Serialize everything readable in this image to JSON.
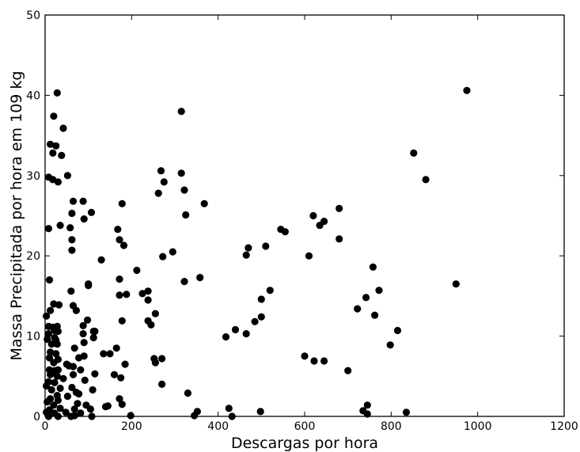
{
  "chart_data": {
    "type": "scatter",
    "title": "",
    "xlabel": "Descargas por hora",
    "ylabel": "Massa Precipitada por hora em 109 kg",
    "xlim": [
      0,
      1200
    ],
    "ylim": [
      0,
      50
    ],
    "x_ticks": [
      0,
      200,
      400,
      600,
      800,
      1000,
      1200
    ],
    "y_ticks": [
      0,
      10,
      20,
      30,
      40,
      50
    ],
    "grid": false,
    "marker_color": "#000000",
    "points": [
      [
        28,
        40.3
      ],
      [
        20,
        37.4
      ],
      [
        42,
        35.9
      ],
      [
        12,
        33.9
      ],
      [
        25,
        33.7
      ],
      [
        18,
        32.8
      ],
      [
        38,
        32.5
      ],
      [
        8,
        29.8
      ],
      [
        18,
        29.5
      ],
      [
        30,
        29.2
      ],
      [
        52,
        30.0
      ],
      [
        65,
        26.8
      ],
      [
        88,
        26.8
      ],
      [
        62,
        25.3
      ],
      [
        107,
        25.4
      ],
      [
        90,
        24.6
      ],
      [
        35,
        23.8
      ],
      [
        8,
        23.4
      ],
      [
        58,
        23.5
      ],
      [
        62,
        22.0
      ],
      [
        62,
        20.7
      ],
      [
        10,
        17.0
      ],
      [
        100,
        16.5
      ],
      [
        100,
        16.3
      ],
      [
        60,
        15.6
      ],
      [
        20,
        14.0
      ],
      [
        32,
        13.9
      ],
      [
        65,
        13.8
      ],
      [
        72,
        13.2
      ],
      [
        12,
        13.2
      ],
      [
        3,
        12.5
      ],
      [
        98,
        12.0
      ],
      [
        88,
        11.3
      ],
      [
        8,
        11.2
      ],
      [
        18,
        11.1
      ],
      [
        28,
        11.2
      ],
      [
        22,
        10.7
      ],
      [
        30,
        10.6
      ],
      [
        112,
        10.6
      ],
      [
        8,
        10.3
      ],
      [
        88,
        10.3
      ],
      [
        22,
        9.8
      ],
      [
        112,
        9.8
      ],
      [
        5,
        9.6
      ],
      [
        25,
        9.5
      ],
      [
        15,
        9.0
      ],
      [
        28,
        9.0
      ],
      [
        68,
        8.5
      ],
      [
        90,
        9.2
      ],
      [
        12,
        8.0
      ],
      [
        25,
        7.8
      ],
      [
        10,
        7.3
      ],
      [
        30,
        7.1
      ],
      [
        78,
        7.3
      ],
      [
        90,
        7.5
      ],
      [
        20,
        6.7
      ],
      [
        50,
        6.5
      ],
      [
        55,
        6.3
      ],
      [
        65,
        6.2
      ],
      [
        30,
        5.8
      ],
      [
        10,
        5.8
      ],
      [
        22,
        5.7
      ],
      [
        82,
        5.8
      ],
      [
        12,
        5.2
      ],
      [
        28,
        5.0
      ],
      [
        65,
        5.2
      ],
      [
        115,
        5.3
      ],
      [
        42,
        4.7
      ],
      [
        8,
        4.3
      ],
      [
        22,
        4.2
      ],
      [
        92,
        4.5
      ],
      [
        3,
        3.8
      ],
      [
        15,
        3.3
      ],
      [
        35,
        3.5
      ],
      [
        62,
        3.6
      ],
      [
        110,
        3.3
      ],
      [
        72,
        3.0
      ],
      [
        78,
        2.8
      ],
      [
        28,
        2.6
      ],
      [
        52,
        2.5
      ],
      [
        12,
        2.2
      ],
      [
        30,
        2.0
      ],
      [
        5,
        1.8
      ],
      [
        20,
        1.4
      ],
      [
        75,
        1.6
      ],
      [
        95,
        1.4
      ],
      [
        35,
        1.0
      ],
      [
        10,
        0.8
      ],
      [
        68,
        0.9
      ],
      [
        105,
        0.9
      ],
      [
        3,
        0.5
      ],
      [
        22,
        0.4
      ],
      [
        48,
        0.5
      ],
      [
        82,
        0.4
      ],
      [
        8,
        0.0
      ],
      [
        30,
        0.0
      ],
      [
        60,
        0.0
      ],
      [
        68,
        0.1
      ],
      [
        108,
        0.0
      ],
      [
        178,
        26.5
      ],
      [
        168,
        23.3
      ],
      [
        172,
        22.0
      ],
      [
        182,
        21.3
      ],
      [
        130,
        19.5
      ],
      [
        212,
        18.2
      ],
      [
        172,
        17.1
      ],
      [
        188,
        15.2
      ],
      [
        172,
        15.1
      ],
      [
        238,
        15.6
      ],
      [
        225,
        15.3
      ],
      [
        238,
        14.5
      ],
      [
        255,
        12.8
      ],
      [
        178,
        11.9
      ],
      [
        238,
        11.9
      ],
      [
        245,
        11.4
      ],
      [
        115,
        10.6
      ],
      [
        165,
        8.5
      ],
      [
        135,
        7.8
      ],
      [
        150,
        7.8
      ],
      [
        252,
        7.2
      ],
      [
        255,
        6.7
      ],
      [
        270,
        7.2
      ],
      [
        185,
        6.5
      ],
      [
        160,
        5.2
      ],
      [
        175,
        4.8
      ],
      [
        270,
        4.0
      ],
      [
        172,
        2.2
      ],
      [
        178,
        1.5
      ],
      [
        145,
        1.3
      ],
      [
        140,
        1.2
      ],
      [
        198,
        0.1
      ],
      [
        268,
        30.6
      ],
      [
        275,
        29.2
      ],
      [
        262,
        27.8
      ],
      [
        315,
        38.0
      ],
      [
        315,
        30.3
      ],
      [
        322,
        28.2
      ],
      [
        368,
        26.5
      ],
      [
        325,
        25.1
      ],
      [
        295,
        20.5
      ],
      [
        272,
        19.9
      ],
      [
        358,
        17.3
      ],
      [
        322,
        16.8
      ],
      [
        330,
        2.9
      ],
      [
        352,
        0.6
      ],
      [
        345,
        0.1
      ],
      [
        470,
        21.0
      ],
      [
        465,
        20.1
      ],
      [
        510,
        21.2
      ],
      [
        545,
        23.3
      ],
      [
        555,
        23.0
      ],
      [
        520,
        15.7
      ],
      [
        500,
        14.6
      ],
      [
        500,
        12.4
      ],
      [
        485,
        11.8
      ],
      [
        440,
        10.8
      ],
      [
        465,
        10.3
      ],
      [
        418,
        9.9
      ],
      [
        425,
        1.0
      ],
      [
        432,
        0.0
      ],
      [
        498,
        0.6
      ],
      [
        620,
        25.0
      ],
      [
        635,
        23.8
      ],
      [
        645,
        24.3
      ],
      [
        680,
        25.9
      ],
      [
        680,
        22.1
      ],
      [
        610,
        20.0
      ],
      [
        758,
        18.6
      ],
      [
        772,
        15.7
      ],
      [
        742,
        14.8
      ],
      [
        722,
        13.4
      ],
      [
        762,
        12.6
      ],
      [
        815,
        10.7
      ],
      [
        798,
        8.9
      ],
      [
        600,
        7.5
      ],
      [
        622,
        6.9
      ],
      [
        645,
        6.9
      ],
      [
        700,
        5.7
      ],
      [
        745,
        1.4
      ],
      [
        735,
        0.7
      ],
      [
        745,
        0.3
      ],
      [
        835,
        0.5
      ],
      [
        975,
        40.6
      ],
      [
        852,
        32.8
      ],
      [
        880,
        29.5
      ],
      [
        950,
        16.5
      ]
    ]
  }
}
